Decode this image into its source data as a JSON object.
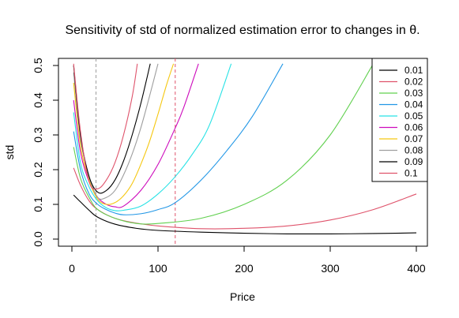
{
  "chart_data": {
    "type": "line",
    "title": "Sensitivity of std of normalized estimation error to changes in θ.",
    "xlabel": "Price",
    "ylabel": "std",
    "xlim": [
      0,
      400
    ],
    "ylim": [
      0,
      0.5
    ],
    "x_ticks": [
      "0",
      "100",
      "200",
      "300",
      "400"
    ],
    "y_ticks": [
      "0.0",
      "0.1",
      "0.2",
      "0.3",
      "0.4",
      "0.5"
    ],
    "legend_position": "top-right",
    "vlines": [
      {
        "x": 28,
        "color": "#9e9e9e",
        "style": "dashed"
      },
      {
        "x": 120,
        "color": "#df536b",
        "style": "dashed"
      }
    ],
    "series": [
      {
        "name": "0.01",
        "color": "#000000",
        "x": [
          2,
          10,
          20,
          30,
          50,
          75,
          100,
          150,
          200,
          250,
          300,
          350,
          400
        ],
        "y": [
          0.127,
          0.107,
          0.083,
          0.063,
          0.043,
          0.031,
          0.025,
          0.02,
          0.017,
          0.015,
          0.015,
          0.016,
          0.018
        ]
      },
      {
        "name": "0.02",
        "color": "#df536b",
        "x": [
          2,
          10,
          20,
          30,
          50,
          75,
          100,
          150,
          200,
          250,
          300,
          350,
          400
        ],
        "y": [
          0.205,
          0.155,
          0.11,
          0.085,
          0.06,
          0.046,
          0.038,
          0.03,
          0.031,
          0.038,
          0.055,
          0.085,
          0.13
        ]
      },
      {
        "name": "0.03",
        "color": "#61d04f",
        "x": [
          2,
          10,
          20,
          30,
          50,
          75,
          100,
          150,
          200,
          250,
          300,
          350
        ],
        "y": [
          0.265,
          0.175,
          0.12,
          0.085,
          0.06,
          0.045,
          0.045,
          0.06,
          0.1,
          0.17,
          0.3,
          0.505
        ]
      },
      {
        "name": "0.04",
        "color": "#2297e6",
        "x": [
          2,
          10,
          20,
          30,
          40,
          50,
          60,
          80,
          100,
          120,
          150,
          180,
          210,
          245
        ],
        "y": [
          0.31,
          0.2,
          0.13,
          0.1,
          0.085,
          0.075,
          0.07,
          0.073,
          0.085,
          0.105,
          0.17,
          0.255,
          0.355,
          0.505
        ]
      },
      {
        "name": "0.05",
        "color": "#28e2e5",
        "x": [
          2,
          10,
          20,
          30,
          40,
          50,
          60,
          80,
          100,
          120,
          140,
          160,
          185
        ],
        "y": [
          0.365,
          0.22,
          0.15,
          0.11,
          0.09,
          0.082,
          0.083,
          0.095,
          0.13,
          0.18,
          0.245,
          0.33,
          0.505
        ]
      },
      {
        "name": "0.06",
        "color": "#cd0bbc",
        "x": [
          2,
          10,
          20,
          30,
          40,
          50,
          60,
          80,
          100,
          120,
          130,
          147
        ],
        "y": [
          0.4,
          0.25,
          0.165,
          0.12,
          0.1,
          0.093,
          0.095,
          0.14,
          0.215,
          0.32,
          0.38,
          0.505
        ]
      },
      {
        "name": "0.07",
        "color": "#f5c710",
        "x": [
          2,
          10,
          20,
          30,
          40,
          50,
          60,
          70,
          80,
          90,
          100,
          110,
          118
        ],
        "y": [
          0.45,
          0.27,
          0.17,
          0.115,
          0.1,
          0.105,
          0.125,
          0.16,
          0.215,
          0.28,
          0.36,
          0.445,
          0.505
        ]
      },
      {
        "name": "0.08",
        "color": "#9e9e9e",
        "x": [
          2,
          10,
          20,
          30,
          40,
          50,
          60,
          70,
          80,
          90,
          100
        ],
        "y": [
          0.48,
          0.29,
          0.18,
          0.12,
          0.12,
          0.14,
          0.185,
          0.245,
          0.32,
          0.41,
          0.505
        ]
      },
      {
        "name": "0.09",
        "color": "#000000",
        "x": [
          2,
          10,
          20,
          30,
          40,
          50,
          60,
          70,
          80,
          91
        ],
        "y": [
          0.5,
          0.3,
          0.18,
          0.135,
          0.14,
          0.17,
          0.225,
          0.3,
          0.39,
          0.505
        ]
      },
      {
        "name": "0.1",
        "color": "#df536b",
        "x": [
          2,
          10,
          20,
          30,
          40,
          50,
          60,
          70,
          76
        ],
        "y": [
          0.505,
          0.31,
          0.165,
          0.145,
          0.17,
          0.22,
          0.3,
          0.41,
          0.505
        ]
      }
    ]
  }
}
